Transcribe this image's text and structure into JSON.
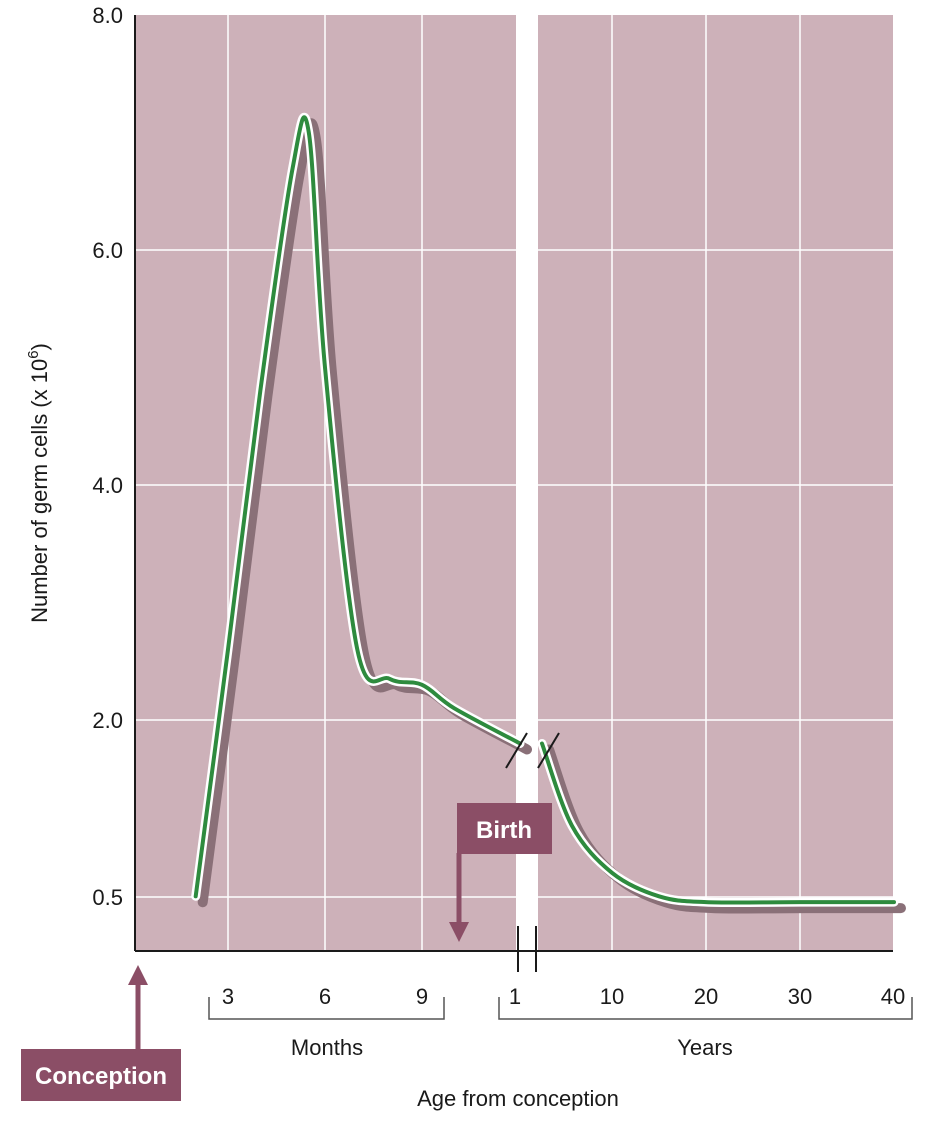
{
  "chart_data": {
    "type": "line",
    "title": "",
    "xlabel": "Age from conception",
    "ylabel": "Number of germ cells (x 10",
    "ylabel_superscript": "6",
    "ylabel_close": ")",
    "ylim": [
      0,
      8.0
    ],
    "y_ticks": [
      "8.0",
      "6.0",
      "4.0",
      "2.0",
      "0.5"
    ],
    "x_tick_labels": [
      "3",
      "6",
      "9",
      "1",
      "10",
      "20",
      "30",
      "40"
    ],
    "x_groups": {
      "months": "Months",
      "years": "Years"
    },
    "grid": true,
    "axis_break": "between months and years",
    "series": [
      {
        "x": [
          "2 months",
          "3 months",
          "4 months",
          "5 months",
          "5.5 months",
          "6 months",
          "7 months",
          "8 months",
          "9 months",
          "10 months",
          "1 year",
          "5 years",
          "10 years",
          "15 years",
          "20 years",
          "30 years",
          "40 years"
        ],
        "values": [
          0.5,
          2.6,
          4.8,
          6.7,
          7.0,
          5.0,
          2.6,
          2.35,
          2.3,
          2.1,
          1.8,
          1.1,
          0.7,
          0.5,
          0.45,
          0.45,
          0.45
        ]
      }
    ],
    "annotations": {
      "birth": "Birth",
      "conception": "Conception"
    }
  },
  "colors": {
    "plot_bg": "#cdb1b9",
    "grid": "#ffffff",
    "line": "#2e8b3e",
    "shadow": "#8a7078",
    "label_box": "#8b4e66"
  }
}
